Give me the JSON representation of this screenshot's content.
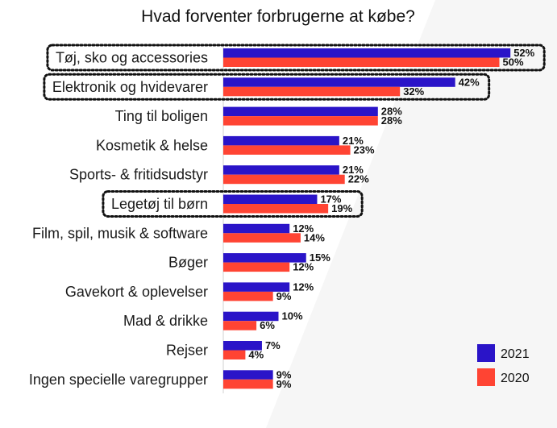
{
  "chart_data": {
    "type": "bar",
    "orientation": "horizontal",
    "title": "Hvad forventer forbrugerne at købe?",
    "categories": [
      "Tøj, sko og accessories",
      "Elektronik og hvidevarer",
      "Ting til boligen",
      "Kosmetik & helse",
      "Sports- & fritidsudstyr",
      "Legetøj til børn",
      "Film, spil, musik & software",
      "Bøger",
      "Gavekort & oplevelser",
      "Mad & drikke",
      "Rejser",
      "Ingen specielle varegrupper"
    ],
    "series": [
      {
        "name": "2021",
        "color": "#2a14c8",
        "values": [
          52,
          42,
          28,
          21,
          21,
          17,
          12,
          15,
          12,
          10,
          7,
          9
        ]
      },
      {
        "name": "2020",
        "color": "#ff4433",
        "values": [
          50,
          32,
          28,
          23,
          22,
          19,
          14,
          12,
          9,
          6,
          4,
          9
        ]
      }
    ],
    "value_suffix": "%",
    "highlighted_categories": [
      "Tøj, sko og accessories",
      "Elektronik og hvidevarer",
      "Legetøj til børn"
    ],
    "xlim": [
      0,
      60
    ],
    "grid": false,
    "legend_position": "bottom-right"
  }
}
